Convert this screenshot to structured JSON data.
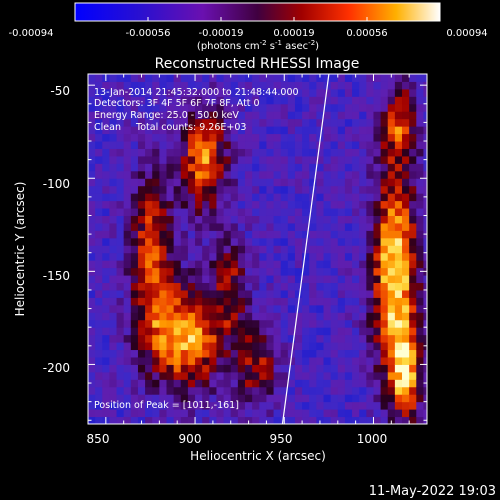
{
  "colorbar": {
    "tick_labels": [
      "-0.00094",
      "-0.00056",
      "-0.00019",
      "0.00019",
      "0.00056",
      "0.00094"
    ],
    "units": "(photons cm",
    "units_sup1": "-2",
    "units_mid": " s",
    "units_sup2": "-1",
    "units_end": " asec",
    "units_sup3": "-2",
    "units_close": ")"
  },
  "chart_data": {
    "type": "heatmap",
    "title": "Reconstructed RHESSI Image",
    "xlabel": "Heliocentric X (arcsec)",
    "ylabel": "Heliocentric Y (arcsec)",
    "xlim": [
      840,
      1030
    ],
    "ylim": [
      -232,
      -44
    ],
    "x_ticks": [
      850,
      900,
      950,
      1000
    ],
    "y_ticks": [
      -50,
      -100,
      -150,
      -200
    ],
    "color_range": [
      -0.00094,
      0.00094
    ],
    "colormap": "blue-purple-red-orange-yellow-white",
    "limb_line": {
      "x": [
        949,
        975
      ],
      "y": [
        -232,
        -44
      ]
    },
    "annotations": [
      "13-Jan-2014 21:45:32.000 to 21:48:44.000",
      "Detectors: 3F 4F 5F 6F 7F 8F, Att 0",
      "Energy Range: 25.0 - 50.0 keV",
      "Clean     Total counts: 9.26E+03",
      "Position of Peak = [1011,-161]"
    ],
    "peak": [
      1011,
      -161
    ]
  },
  "footer": {
    "timestamp": "11-May-2022 19:03"
  }
}
